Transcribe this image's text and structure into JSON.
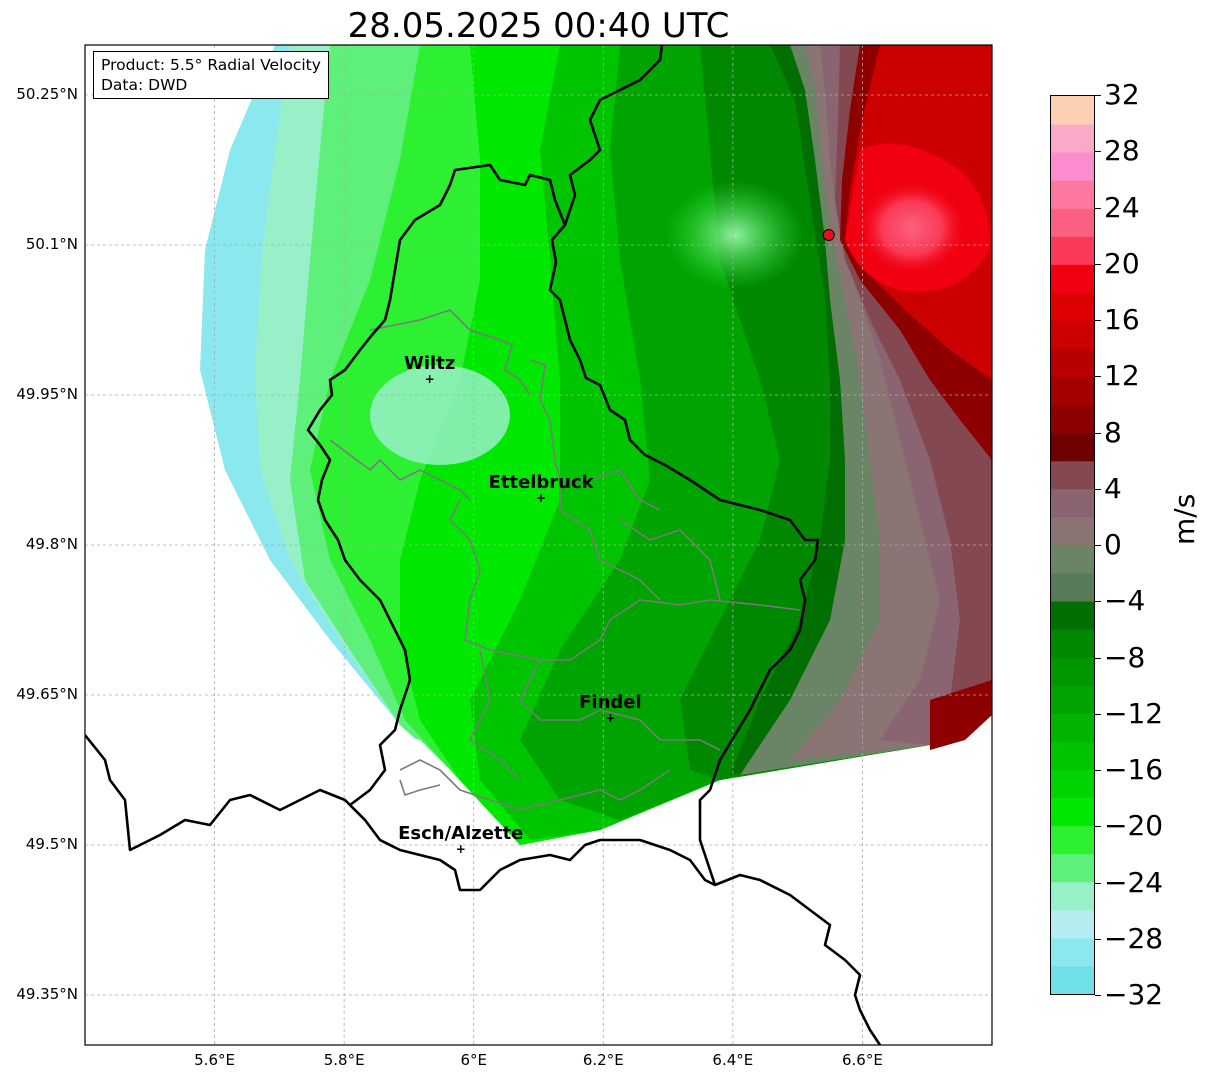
{
  "title": "28.05.2025 00:40 UTC",
  "info": {
    "product": "Product: 5.5° Radial Velocity",
    "data": "Data: DWD"
  },
  "axes": {
    "lat_labels": [
      "50.25°N",
      "50.1°N",
      "49.95°N",
      "49.8°N",
      "49.65°N",
      "49.5°N",
      "49.35°N"
    ],
    "lat_values": [
      50.25,
      50.1,
      49.95,
      49.8,
      49.65,
      49.5,
      49.35
    ],
    "lon_labels": [
      "5.6°E",
      "5.8°E",
      "6°E",
      "6.2°E",
      "6.4°E",
      "6.6°E"
    ],
    "lon_values": [
      5.6,
      5.8,
      6.0,
      6.2,
      6.4,
      6.6
    ],
    "lat_range": [
      49.3,
      50.3
    ],
    "lon_range": [
      5.4,
      6.8
    ],
    "grid": true
  },
  "cities": [
    {
      "name": "Wiltz",
      "lon": 5.932,
      "lat": 49.966
    },
    {
      "name": "Ettelbruck",
      "lon": 6.104,
      "lat": 49.847
    },
    {
      "name": "Findel",
      "lon": 6.211,
      "lat": 49.627
    },
    {
      "name": "Esch/Alzette",
      "lon": 5.98,
      "lat": 49.496
    }
  ],
  "radar_site": {
    "lon": 6.548,
    "lat": 50.11,
    "color": "#e8101e"
  },
  "colorbar": {
    "unit": "m/s",
    "min": -32,
    "max": 32,
    "tick_labels": [
      "32",
      "28",
      "24",
      "20",
      "16",
      "12",
      "8",
      "4",
      "0",
      "−4",
      "−8",
      "−12",
      "−16",
      "−20",
      "−24",
      "−28",
      "−32"
    ],
    "tick_values": [
      32,
      28,
      24,
      20,
      16,
      12,
      8,
      4,
      0,
      -4,
      -8,
      -12,
      -16,
      -20,
      -24,
      -28,
      -32
    ],
    "colors": [
      "#70e0e8",
      "#8ae8ee",
      "#b4ecf0",
      "#98f0c8",
      "#5ef07a",
      "#2ef032",
      "#00e800",
      "#00d400",
      "#00c400",
      "#00b400",
      "#00a400",
      "#009600",
      "#008800",
      "#006e00",
      "#587a58",
      "#6a8466",
      "#8a7474",
      "#8a6470",
      "#844850",
      "#6e0000",
      "#8e0000",
      "#a40000",
      "#b80000",
      "#cc0000",
      "#de0000",
      "#f00010",
      "#fa3a56",
      "#fc6080",
      "#fc78a0",
      "#fc8cce",
      "#fca8c8",
      "#fcd0b0"
    ]
  }
}
